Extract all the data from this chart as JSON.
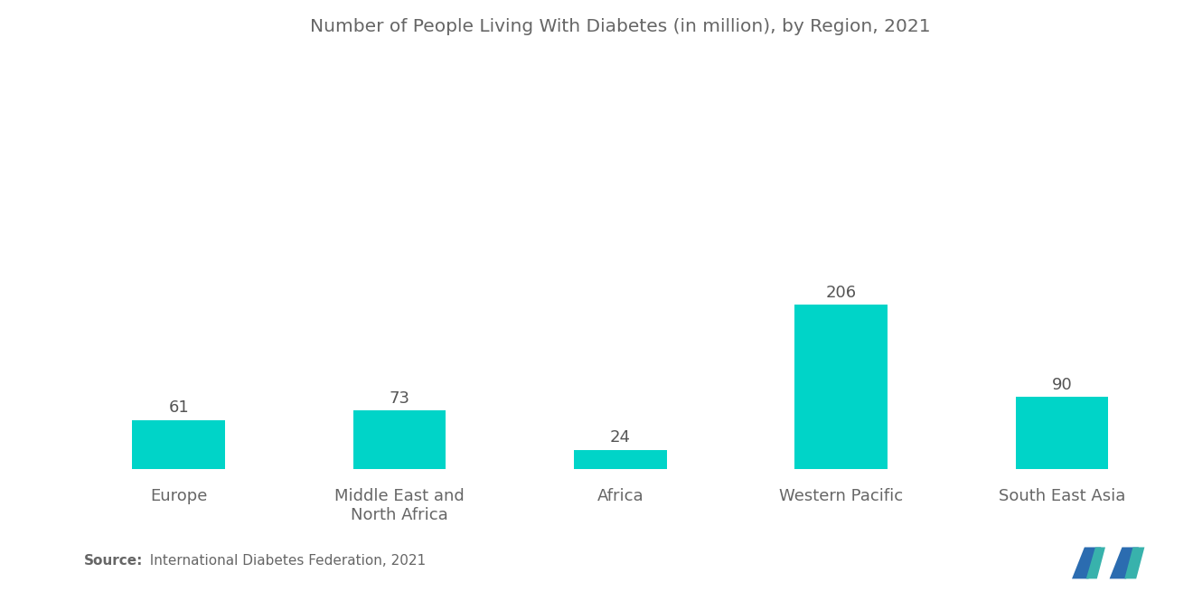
{
  "title": "Number of People Living With Diabetes (in million), by Region, 2021",
  "categories": [
    "Europe",
    "Middle East and\nNorth Africa",
    "Africa",
    "Western Pacific",
    "South East Asia"
  ],
  "values": [
    61,
    73,
    24,
    206,
    90
  ],
  "bar_color": "#00D4C8",
  "background_color": "#ffffff",
  "title_color": "#666666",
  "label_color": "#666666",
  "value_color": "#555555",
  "source_bold": "Source:",
  "source_rest": "  International Diabetes Federation, 2021",
  "title_fontsize": 14.5,
  "label_fontsize": 13,
  "value_fontsize": 13,
  "source_fontsize": 11,
  "ylim": [
    0,
    520
  ],
  "bar_width": 0.42,
  "logo_blue": "#2B6CB0",
  "logo_teal": "#38B2AC"
}
